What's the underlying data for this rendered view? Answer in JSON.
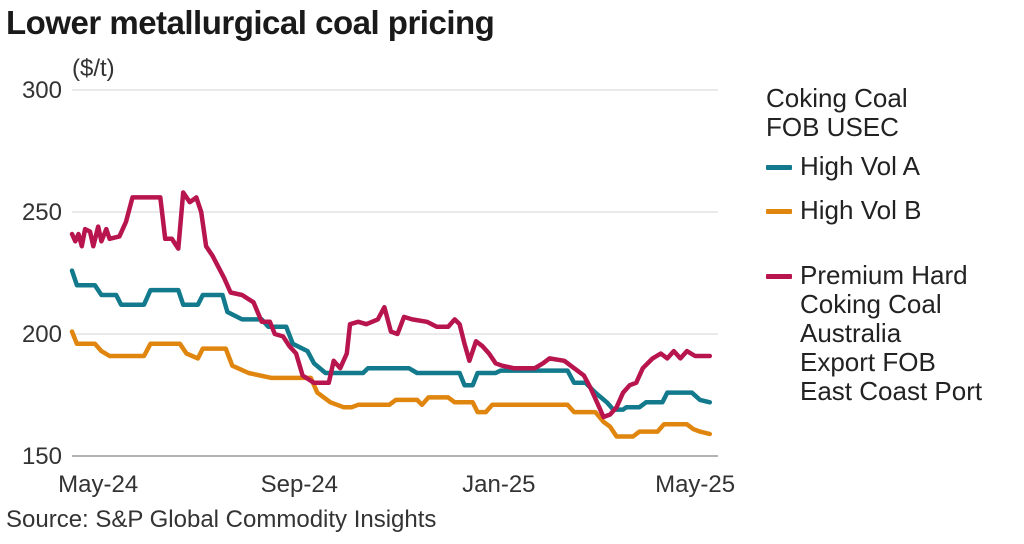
{
  "chart_data": {
    "type": "line",
    "title": "Lower metallurgical coal pricing",
    "ylabel": "($/t)",
    "ylim": [
      150,
      300
    ],
    "yticks": [
      "300",
      "250",
      "200",
      "150"
    ],
    "xlim": [
      "2024-04-15",
      "2025-05-15"
    ],
    "xticks": [
      {
        "label": "May-24",
        "date": "2024-05-01"
      },
      {
        "label": "Sep-24",
        "date": "2024-09-01"
      },
      {
        "label": "Jan-25",
        "date": "2025-01-01"
      },
      {
        "label": "May-25",
        "date": "2025-05-01"
      }
    ],
    "grid": true,
    "legend": {
      "position": "right",
      "title": "Coking Coal\nFOB USEC"
    },
    "source": "Source: S&P Global Commodity Insights",
    "series": [
      {
        "name": "High Vol A",
        "color": "#127a8c",
        "points": [
          [
            "2024-04-15",
            226
          ],
          [
            "2024-04-18",
            220
          ],
          [
            "2024-04-29",
            220
          ],
          [
            "2024-05-03",
            216
          ],
          [
            "2024-05-12",
            216
          ],
          [
            "2024-05-15",
            212
          ],
          [
            "2024-05-29",
            212
          ],
          [
            "2024-06-02",
            218
          ],
          [
            "2024-06-19",
            218
          ],
          [
            "2024-06-22",
            212
          ],
          [
            "2024-07-01",
            212
          ],
          [
            "2024-07-04",
            216
          ],
          [
            "2024-07-16",
            216
          ],
          [
            "2024-07-19",
            209
          ],
          [
            "2024-07-28",
            206
          ],
          [
            "2024-08-09",
            206
          ],
          [
            "2024-08-13",
            203
          ],
          [
            "2024-08-24",
            203
          ],
          [
            "2024-08-28",
            196
          ],
          [
            "2024-09-06",
            193
          ],
          [
            "2024-09-10",
            188
          ],
          [
            "2024-09-17",
            184
          ],
          [
            "2024-10-10",
            184
          ],
          [
            "2024-10-13",
            186
          ],
          [
            "2024-11-07",
            186
          ],
          [
            "2024-11-12",
            184
          ],
          [
            "2024-12-08",
            184
          ],
          [
            "2024-12-11",
            179
          ],
          [
            "2024-12-16",
            179
          ],
          [
            "2024-12-19",
            184
          ],
          [
            "2024-12-30",
            184
          ],
          [
            "2025-01-02",
            185
          ],
          [
            "2025-02-12",
            185
          ],
          [
            "2025-02-16",
            180
          ],
          [
            "2025-02-23",
            180
          ],
          [
            "2025-03-01",
            176
          ],
          [
            "2025-03-08",
            172
          ],
          [
            "2025-03-12",
            169
          ],
          [
            "2025-03-18",
            169
          ],
          [
            "2025-03-20",
            170
          ],
          [
            "2025-03-28",
            170
          ],
          [
            "2025-04-01",
            172
          ],
          [
            "2025-04-11",
            172
          ],
          [
            "2025-04-14",
            176
          ],
          [
            "2025-04-29",
            176
          ],
          [
            "2025-05-04",
            173
          ],
          [
            "2025-05-10",
            172
          ]
        ]
      },
      {
        "name": "High Vol B",
        "color": "#e0860e",
        "points": [
          [
            "2024-04-15",
            201
          ],
          [
            "2024-04-18",
            196
          ],
          [
            "2024-04-29",
            196
          ],
          [
            "2024-05-03",
            193
          ],
          [
            "2024-05-08",
            191
          ],
          [
            "2024-05-29",
            191
          ],
          [
            "2024-06-02",
            196
          ],
          [
            "2024-06-20",
            196
          ],
          [
            "2024-06-24",
            192
          ],
          [
            "2024-07-01",
            190
          ],
          [
            "2024-07-04",
            194
          ],
          [
            "2024-07-18",
            194
          ],
          [
            "2024-07-22",
            187
          ],
          [
            "2024-08-01",
            184
          ],
          [
            "2024-08-15",
            182
          ],
          [
            "2024-09-08",
            182
          ],
          [
            "2024-09-12",
            176
          ],
          [
            "2024-09-20",
            172
          ],
          [
            "2024-09-28",
            170
          ],
          [
            "2024-10-03",
            170
          ],
          [
            "2024-10-07",
            171
          ],
          [
            "2024-10-26",
            171
          ],
          [
            "2024-10-30",
            173
          ],
          [
            "2024-11-12",
            173
          ],
          [
            "2024-11-15",
            171
          ],
          [
            "2024-11-19",
            174
          ],
          [
            "2024-12-01",
            174
          ],
          [
            "2024-12-05",
            172
          ],
          [
            "2024-12-16",
            172
          ],
          [
            "2024-12-19",
            168
          ],
          [
            "2024-12-24",
            168
          ],
          [
            "2024-12-28",
            171
          ],
          [
            "2025-02-12",
            171
          ],
          [
            "2025-02-16",
            168
          ],
          [
            "2025-03-01",
            168
          ],
          [
            "2025-03-06",
            164
          ],
          [
            "2025-03-10",
            162
          ],
          [
            "2025-03-14",
            158
          ],
          [
            "2025-03-24",
            158
          ],
          [
            "2025-03-28",
            160
          ],
          [
            "2025-04-08",
            160
          ],
          [
            "2025-04-12",
            163
          ],
          [
            "2025-04-26",
            163
          ],
          [
            "2025-04-30",
            161
          ],
          [
            "2025-05-04",
            160
          ],
          [
            "2025-05-10",
            159
          ]
        ]
      },
      {
        "name": "Premium Hard\nCoking Coal\nAustralia\nExport FOB\nEast Coast Port",
        "color": "#b8154f",
        "points": [
          [
            "2024-04-15",
            241
          ],
          [
            "2024-04-17",
            238
          ],
          [
            "2024-04-19",
            241
          ],
          [
            "2024-04-21",
            236
          ],
          [
            "2024-04-23",
            243
          ],
          [
            "2024-04-26",
            242
          ],
          [
            "2024-04-28",
            236
          ],
          [
            "2024-05-01",
            244
          ],
          [
            "2024-05-03",
            238
          ],
          [
            "2024-05-06",
            243
          ],
          [
            "2024-05-08",
            239
          ],
          [
            "2024-05-14",
            240
          ],
          [
            "2024-05-18",
            246
          ],
          [
            "2024-05-22",
            256
          ],
          [
            "2024-06-08",
            256
          ],
          [
            "2024-06-11",
            239
          ],
          [
            "2024-06-15",
            239
          ],
          [
            "2024-06-19",
            235
          ],
          [
            "2024-06-22",
            258
          ],
          [
            "2024-06-26",
            254
          ],
          [
            "2024-06-30",
            256
          ],
          [
            "2024-07-03",
            250
          ],
          [
            "2024-07-06",
            236
          ],
          [
            "2024-07-10",
            232
          ],
          [
            "2024-07-17",
            223
          ],
          [
            "2024-07-21",
            217
          ],
          [
            "2024-07-28",
            216
          ],
          [
            "2024-08-04",
            213
          ],
          [
            "2024-08-09",
            205
          ],
          [
            "2024-08-14",
            205
          ],
          [
            "2024-08-17",
            200
          ],
          [
            "2024-08-22",
            199
          ],
          [
            "2024-08-26",
            195
          ],
          [
            "2024-08-30",
            192
          ],
          [
            "2024-09-03",
            183
          ],
          [
            "2024-09-10",
            180
          ],
          [
            "2024-09-19",
            180
          ],
          [
            "2024-09-22",
            189
          ],
          [
            "2024-09-26",
            186
          ],
          [
            "2024-09-30",
            192
          ],
          [
            "2024-10-02",
            204
          ],
          [
            "2024-10-07",
            205
          ],
          [
            "2024-10-12",
            204
          ],
          [
            "2024-10-19",
            206
          ],
          [
            "2024-10-23",
            211
          ],
          [
            "2024-10-27",
            201
          ],
          [
            "2024-10-31",
            200
          ],
          [
            "2024-11-04",
            207
          ],
          [
            "2024-11-09",
            206
          ],
          [
            "2024-11-18",
            205
          ],
          [
            "2024-11-24",
            203
          ],
          [
            "2024-12-01",
            203
          ],
          [
            "2024-12-05",
            206
          ],
          [
            "2024-12-08",
            204
          ],
          [
            "2024-12-11",
            196
          ],
          [
            "2024-12-14",
            189
          ],
          [
            "2024-12-18",
            197
          ],
          [
            "2024-12-22",
            195
          ],
          [
            "2024-12-26",
            192
          ],
          [
            "2024-12-30",
            188
          ],
          [
            "2025-01-03",
            187
          ],
          [
            "2025-01-10",
            186
          ],
          [
            "2025-01-23",
            186
          ],
          [
            "2025-01-28",
            188
          ],
          [
            "2025-02-01",
            190
          ],
          [
            "2025-02-10",
            189
          ],
          [
            "2025-02-16",
            186
          ],
          [
            "2025-02-22",
            183
          ],
          [
            "2025-02-26",
            178
          ],
          [
            "2025-03-02",
            172
          ],
          [
            "2025-03-06",
            166
          ],
          [
            "2025-03-10",
            167
          ],
          [
            "2025-03-14",
            170
          ],
          [
            "2025-03-18",
            176
          ],
          [
            "2025-03-22",
            179
          ],
          [
            "2025-03-26",
            180
          ],
          [
            "2025-03-30",
            186
          ],
          [
            "2025-04-05",
            190
          ],
          [
            "2025-04-10",
            192
          ],
          [
            "2025-04-14",
            190
          ],
          [
            "2025-04-18",
            193
          ],
          [
            "2025-04-22",
            190
          ],
          [
            "2025-04-26",
            193
          ],
          [
            "2025-05-01",
            191
          ],
          [
            "2025-05-10",
            191
          ]
        ]
      }
    ]
  }
}
